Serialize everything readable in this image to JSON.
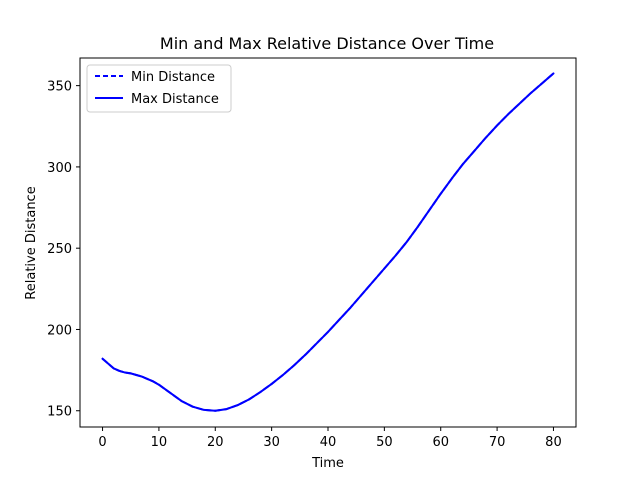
{
  "chart_data": {
    "type": "line",
    "title": "Min and Max Relative Distance Over Time",
    "xlabel": "Time",
    "ylabel": "Relative Distance",
    "xlim": [
      -4,
      84
    ],
    "ylim": [
      140,
      367
    ],
    "xticks": [
      0,
      10,
      20,
      30,
      40,
      50,
      60,
      70,
      80
    ],
    "yticks": [
      150,
      200,
      250,
      300,
      350
    ],
    "grid": false,
    "legend_position": "top-left",
    "series": [
      {
        "name": "Min Distance",
        "color": "#0000ff",
        "linestyle": "dashed",
        "x": [
          0,
          1,
          2,
          3,
          4,
          5,
          6,
          7,
          8,
          9,
          10,
          12,
          14,
          16,
          18,
          20,
          22,
          24,
          26,
          28,
          30,
          32,
          34,
          36,
          38,
          40,
          42,
          44,
          46,
          48,
          50,
          52,
          54,
          56,
          58,
          60,
          62,
          64,
          66,
          68,
          70,
          72,
          74,
          76,
          78,
          80
        ],
        "y": [
          182,
          179,
          176,
          174.5,
          173.5,
          173,
          172,
          171,
          169.5,
          168,
          166,
          161,
          156,
          152.5,
          150.5,
          150,
          151,
          153.5,
          157,
          161.5,
          166.5,
          172,
          178,
          184.5,
          191.5,
          198.5,
          206,
          213.5,
          221.5,
          229.5,
          237.5,
          245.5,
          254,
          263.5,
          273.5,
          283.5,
          293,
          302,
          310,
          318,
          325.5,
          332.5,
          339,
          345.5,
          351.5,
          357.5
        ]
      },
      {
        "name": "Max Distance",
        "color": "#0000ff",
        "linestyle": "solid",
        "x": [
          0,
          1,
          2,
          3,
          4,
          5,
          6,
          7,
          8,
          9,
          10,
          12,
          14,
          16,
          18,
          20,
          22,
          24,
          26,
          28,
          30,
          32,
          34,
          36,
          38,
          40,
          42,
          44,
          46,
          48,
          50,
          52,
          54,
          56,
          58,
          60,
          62,
          64,
          66,
          68,
          70,
          72,
          74,
          76,
          78,
          80
        ],
        "y": [
          182,
          179,
          176,
          174.5,
          173.5,
          173,
          172,
          171,
          169.5,
          168,
          166,
          161,
          156,
          152.5,
          150.5,
          150,
          151,
          153.5,
          157,
          161.5,
          166.5,
          172,
          178,
          184.5,
          191.5,
          198.5,
          206,
          213.5,
          221.5,
          229.5,
          237.5,
          245.5,
          254,
          263.5,
          273.5,
          283.5,
          293,
          302,
          310,
          318,
          325.5,
          332.5,
          339,
          345.5,
          351.5,
          357.5
        ]
      }
    ]
  }
}
